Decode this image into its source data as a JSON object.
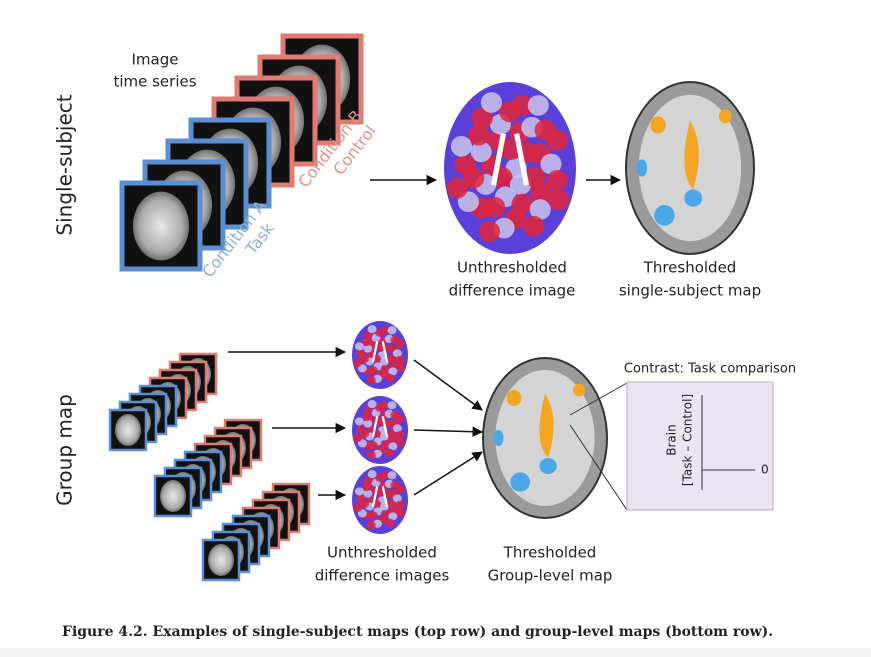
{
  "figure": {
    "row_labels": [
      "Single-subject",
      "Group map"
    ],
    "time_series_label": [
      "Image",
      "time series"
    ],
    "condition_a": [
      "Condition A",
      "Task"
    ],
    "condition_b": [
      "Condition B",
      "Control"
    ],
    "top_labels": {
      "unthresholded": [
        "Unthresholded",
        "difference image"
      ],
      "thresholded": [
        "Thresholded",
        "single-subject map"
      ]
    },
    "bottom_labels": {
      "unthresholded": [
        "Unthresholded",
        "difference images"
      ],
      "thresholded": [
        "Thresholded",
        "Group-level map"
      ]
    },
    "inset": {
      "title": "Contrast: Task comparison",
      "axis_label": [
        "Brain",
        "[Task – Control]"
      ],
      "zero_label": "0"
    },
    "caption": "Figure 4.2. Examples of single-subject maps (top row) and group-level maps (bottom row)."
  }
}
